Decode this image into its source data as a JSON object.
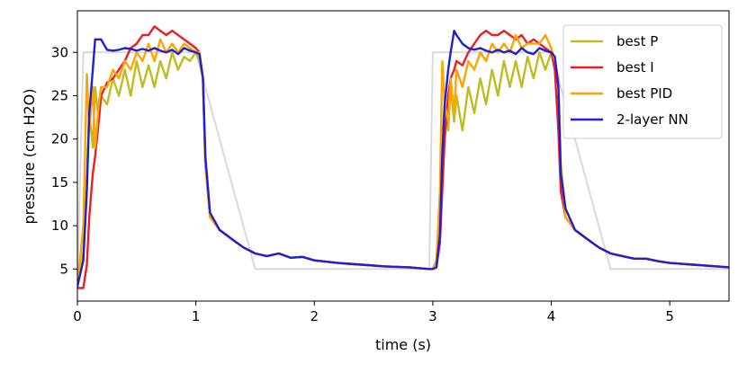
{
  "chart_data": {
    "type": "line",
    "xlabel": "time (s)",
    "ylabel": "pressure (cm H2O)",
    "xlim": [
      0,
      5.5
    ],
    "ylim": [
      1.3,
      34.8
    ],
    "x_ticks": [
      0,
      1,
      2,
      3,
      4,
      5
    ],
    "y_ticks": [
      5,
      10,
      15,
      20,
      25,
      30
    ],
    "grid": false,
    "legend_position": "top-right",
    "target": {
      "color": "#d9d9d9",
      "x": [
        0,
        0.05,
        1.0,
        1.5,
        2.97,
        3.0,
        4.0,
        4.5,
        5.5
      ],
      "y": [
        3,
        30,
        30,
        5,
        5,
        30,
        30,
        5,
        5
      ]
    },
    "series": [
      {
        "name": "best P",
        "color": "#bcbd22",
        "x": [
          0,
          0.05,
          0.08,
          0.1,
          0.13,
          0.15,
          0.18,
          0.2,
          0.25,
          0.3,
          0.35,
          0.4,
          0.45,
          0.5,
          0.55,
          0.6,
          0.65,
          0.7,
          0.75,
          0.8,
          0.85,
          0.9,
          0.95,
          1.0,
          1.03,
          1.06,
          1.08,
          1.12,
          1.2,
          1.3,
          1.4,
          1.5,
          1.6,
          1.7,
          1.8,
          1.9,
          2.0,
          2.2,
          2.4,
          2.6,
          2.8,
          2.97,
          3.0,
          3.03,
          3.06,
          3.08,
          3.1,
          3.13,
          3.15,
          3.18,
          3.2,
          3.25,
          3.3,
          3.35,
          3.4,
          3.45,
          3.5,
          3.55,
          3.6,
          3.65,
          3.7,
          3.75,
          3.8,
          3.85,
          3.9,
          3.95,
          4.0,
          4.03,
          4.06,
          4.08,
          4.12,
          4.2,
          4.3,
          4.4,
          4.5,
          4.6,
          4.7,
          4.8,
          4.9,
          5.0,
          5.2,
          5.4,
          5.5
        ],
        "y": [
          3,
          7,
          16,
          23,
          19,
          26,
          22,
          25,
          24,
          27,
          25,
          28,
          25,
          29,
          26,
          28.5,
          26,
          29,
          27,
          30,
          28,
          29.5,
          29,
          30,
          29,
          27,
          17,
          11,
          9.5,
          8.5,
          7.5,
          6.8,
          6.5,
          6.8,
          6.3,
          6.4,
          6,
          5.7,
          5.5,
          5.3,
          5.2,
          5.0,
          5.0,
          6,
          12,
          20,
          24,
          21,
          26,
          22,
          25,
          21,
          26,
          23,
          27,
          24,
          28,
          25,
          29,
          26,
          29,
          26,
          29.5,
          27,
          30,
          28,
          30,
          29,
          27,
          17,
          12,
          9.5,
          8.5,
          7.5,
          6.8,
          6.5,
          6.2,
          6.2,
          5.9,
          5.7,
          5.5,
          5.3,
          5.2
        ]
      },
      {
        "name": "best I",
        "color": "#ee1c25",
        "x": [
          0,
          0.05,
          0.08,
          0.1,
          0.13,
          0.15,
          0.18,
          0.2,
          0.25,
          0.3,
          0.35,
          0.4,
          0.45,
          0.5,
          0.55,
          0.6,
          0.65,
          0.7,
          0.75,
          0.8,
          0.85,
          0.9,
          0.95,
          1.0,
          1.03,
          1.06,
          1.08,
          1.12,
          1.2,
          1.3,
          1.4,
          1.5,
          1.6,
          1.7,
          1.8,
          1.9,
          2.0,
          2.2,
          2.4,
          2.6,
          2.8,
          2.97,
          3.0,
          3.03,
          3.06,
          3.08,
          3.1,
          3.13,
          3.15,
          3.18,
          3.2,
          3.25,
          3.3,
          3.35,
          3.4,
          3.45,
          3.5,
          3.55,
          3.6,
          3.65,
          3.7,
          3.75,
          3.8,
          3.85,
          3.9,
          3.95,
          4.0,
          4.03,
          4.06,
          4.08,
          4.12,
          4.2,
          4.3,
          4.4,
          4.5,
          4.6,
          4.7,
          4.8,
          4.9,
          5.0,
          5.2,
          5.4,
          5.5
        ],
        "y": [
          2.8,
          2.8,
          5.5,
          11,
          16,
          18,
          22,
          25,
          26.5,
          27,
          28,
          29,
          30.5,
          31,
          32,
          32,
          33,
          32.5,
          32,
          32.5,
          32,
          31.5,
          31,
          30.5,
          30,
          27,
          17,
          11,
          9.5,
          8.5,
          7.5,
          6.8,
          6.5,
          6.8,
          6.3,
          6.4,
          6,
          5.7,
          5.5,
          5.3,
          5.2,
          5.0,
          5.0,
          5.2,
          8,
          14,
          20,
          25,
          27,
          28,
          29,
          28.5,
          30,
          31,
          32,
          32.5,
          32,
          32,
          32.5,
          32,
          31.5,
          32,
          31,
          31.5,
          31,
          30.5,
          30,
          28,
          21,
          14,
          11,
          9.5,
          8.5,
          7.5,
          6.8,
          6.5,
          6.2,
          6.2,
          5.9,
          5.7,
          5.5,
          5.3,
          5.2
        ]
      },
      {
        "name": "best PID",
        "color": "#ffa400",
        "x": [
          0,
          0.05,
          0.08,
          0.1,
          0.13,
          0.15,
          0.18,
          0.2,
          0.25,
          0.3,
          0.35,
          0.4,
          0.45,
          0.5,
          0.55,
          0.6,
          0.65,
          0.7,
          0.75,
          0.8,
          0.85,
          0.9,
          0.95,
          1.0,
          1.03,
          1.06,
          1.08,
          1.12,
          1.2,
          1.3,
          1.4,
          1.5,
          1.6,
          1.7,
          1.8,
          1.9,
          2.0,
          2.2,
          2.4,
          2.6,
          2.8,
          2.97,
          3.0,
          3.03,
          3.06,
          3.08,
          3.1,
          3.13,
          3.15,
          3.18,
          3.2,
          3.25,
          3.3,
          3.35,
          3.4,
          3.45,
          3.5,
          3.55,
          3.6,
          3.65,
          3.7,
          3.75,
          3.8,
          3.85,
          3.9,
          3.95,
          4.0,
          4.03,
          4.06,
          4.08,
          4.12,
          4.2,
          4.3,
          4.4,
          4.5,
          4.6,
          4.7,
          4.8,
          4.9,
          5.0,
          5.2,
          5.4,
          5.5
        ],
        "y": [
          3,
          10,
          27.5,
          21,
          26,
          19,
          24,
          26,
          26,
          28,
          27,
          29,
          28,
          30,
          29,
          31,
          29,
          31.5,
          30,
          31,
          30,
          31,
          30.5,
          30,
          30,
          27,
          17,
          11,
          9.5,
          8.5,
          7.5,
          6.8,
          6.5,
          6.8,
          6.3,
          6.4,
          6,
          5.7,
          5.5,
          5.3,
          5.2,
          5.0,
          5.0,
          6,
          14,
          29,
          24,
          22,
          27,
          23,
          28,
          26,
          29,
          28,
          30,
          29,
          31,
          30,
          31,
          30,
          32,
          30.5,
          31,
          31,
          31,
          32,
          30.5,
          29,
          27,
          17,
          11,
          9.5,
          8.5,
          7.5,
          6.8,
          6.5,
          6.2,
          6.2,
          5.9,
          5.7,
          5.5,
          5.3,
          5.2
        ]
      },
      {
        "name": "2-layer NN",
        "color": "#1f1fd3",
        "x": [
          0,
          0.05,
          0.08,
          0.1,
          0.13,
          0.15,
          0.18,
          0.2,
          0.25,
          0.3,
          0.35,
          0.4,
          0.45,
          0.5,
          0.55,
          0.6,
          0.65,
          0.7,
          0.75,
          0.8,
          0.85,
          0.9,
          0.95,
          1.0,
          1.03,
          1.06,
          1.08,
          1.12,
          1.2,
          1.3,
          1.4,
          1.5,
          1.6,
          1.7,
          1.8,
          1.9,
          2.0,
          2.2,
          2.4,
          2.6,
          2.8,
          2.97,
          3.0,
          3.03,
          3.06,
          3.08,
          3.1,
          3.13,
          3.15,
          3.18,
          3.2,
          3.25,
          3.3,
          3.35,
          3.4,
          3.45,
          3.5,
          3.55,
          3.6,
          3.65,
          3.7,
          3.75,
          3.8,
          3.85,
          3.9,
          3.95,
          4.0,
          4.03,
          4.06,
          4.08,
          4.12,
          4.2,
          4.3,
          4.4,
          4.5,
          4.6,
          4.7,
          4.8,
          4.9,
          5.0,
          5.2,
          5.4,
          5.5
        ],
        "y": [
          3,
          6,
          14,
          23,
          28,
          31.5,
          31.5,
          31.5,
          30.3,
          30.2,
          30.3,
          30.5,
          30.4,
          30.2,
          30.4,
          30.2,
          30.5,
          30.2,
          30,
          30.3,
          29.8,
          30.5,
          30.2,
          30,
          29.8,
          27,
          18,
          11.5,
          9.5,
          8.5,
          7.5,
          6.8,
          6.5,
          6.8,
          6.3,
          6.4,
          6,
          5.7,
          5.5,
          5.3,
          5.2,
          5.0,
          5.0,
          5.2,
          9,
          18,
          24,
          28,
          30,
          32.5,
          32,
          31,
          30.5,
          30.3,
          30.5,
          30.2,
          30,
          30.3,
          30,
          30.2,
          29.8,
          30.5,
          30,
          29.8,
          30.5,
          30.2,
          30,
          29.5,
          26,
          16,
          12,
          9.5,
          8.5,
          7.5,
          6.8,
          6.5,
          6.2,
          6.2,
          5.9,
          5.7,
          5.5,
          5.3,
          5.2
        ]
      }
    ]
  }
}
